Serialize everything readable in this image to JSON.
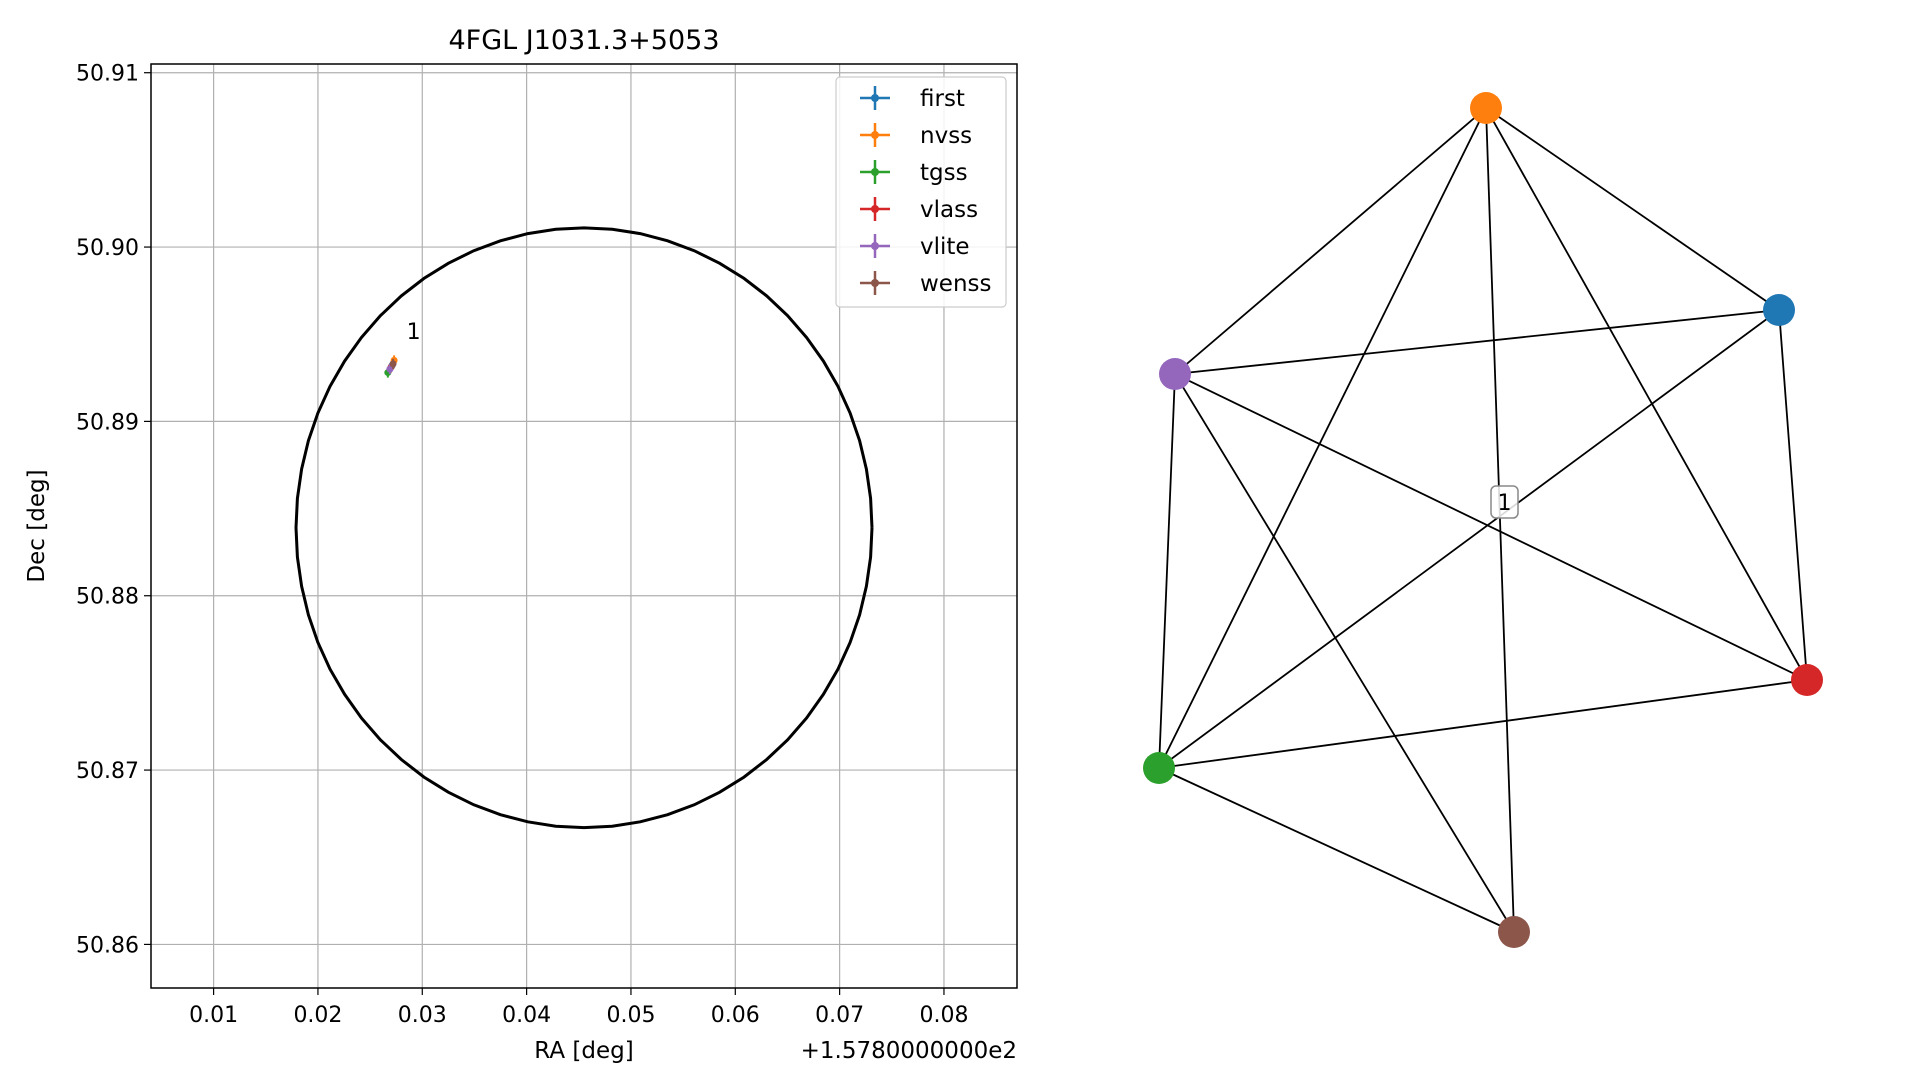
{
  "chart_data": [
    {
      "type": "scatter",
      "title": "4FGL J1031.3+5053",
      "xlabel": "RA [deg]",
      "ylabel": "Dec [deg]",
      "x_offset_label": "+1.5780000000e2",
      "xlim": [
        0.004,
        0.087
      ],
      "ylim": [
        50.8575,
        50.9105
      ],
      "xticks": [
        "0.01",
        "0.02",
        "0.03",
        "0.04",
        "0.05",
        "0.06",
        "0.07",
        "0.08"
      ],
      "yticks": [
        "50.86",
        "50.87",
        "50.88",
        "50.89",
        "50.90",
        "50.91"
      ],
      "grid": true,
      "legend_position": "top-right",
      "error_circle": {
        "ra": 0.0455,
        "dec": 50.8839,
        "ra_radius": 0.0276,
        "dec_radius": 0.0172,
        "color": "#000000"
      },
      "series": [
        {
          "name": "first",
          "color": "#1f77b4",
          "x": [
            0.0271
          ],
          "y": [
            50.8932
          ]
        },
        {
          "name": "nvss",
          "color": "#ff7f0e",
          "x": [
            0.0273
          ],
          "y": [
            50.8935
          ]
        },
        {
          "name": "tgss",
          "color": "#2ca02c",
          "x": [
            0.0267
          ],
          "y": [
            50.8928
          ]
        },
        {
          "name": "vlass",
          "color": "#d62728",
          "x": [
            0.027
          ],
          "y": [
            50.8931
          ]
        },
        {
          "name": "vlite",
          "color": "#9467bd",
          "x": [
            0.0269
          ],
          "y": [
            50.893
          ]
        },
        {
          "name": "wenss",
          "color": "#8c564b",
          "x": [
            0.0272
          ],
          "y": [
            50.8933
          ]
        }
      ],
      "annotations": [
        {
          "text": "1",
          "x": 0.0285,
          "y": 50.8945
        }
      ]
    },
    {
      "type": "network",
      "nodes": [
        {
          "name": "first",
          "color": "#1f77b4"
        },
        {
          "name": "nvss",
          "color": "#ff7f0e"
        },
        {
          "name": "tgss",
          "color": "#2ca02c"
        },
        {
          "name": "vlass",
          "color": "#d62728"
        },
        {
          "name": "vlite",
          "color": "#9467bd"
        },
        {
          "name": "wenss",
          "color": "#8c564b"
        }
      ],
      "edges": [
        [
          "nvss",
          "first"
        ],
        [
          "nvss",
          "vlite"
        ],
        [
          "nvss",
          "tgss"
        ],
        [
          "nvss",
          "wenss"
        ],
        [
          "nvss",
          "vlass"
        ],
        [
          "first",
          "vlite"
        ],
        [
          "first",
          "tgss"
        ],
        [
          "first",
          "vlass"
        ],
        [
          "vlite",
          "tgss"
        ],
        [
          "vlite",
          "wenss"
        ],
        [
          "vlite",
          "vlass"
        ],
        [
          "tgss",
          "vlass"
        ],
        [
          "tgss",
          "wenss"
        ]
      ],
      "center_label": "1"
    }
  ]
}
